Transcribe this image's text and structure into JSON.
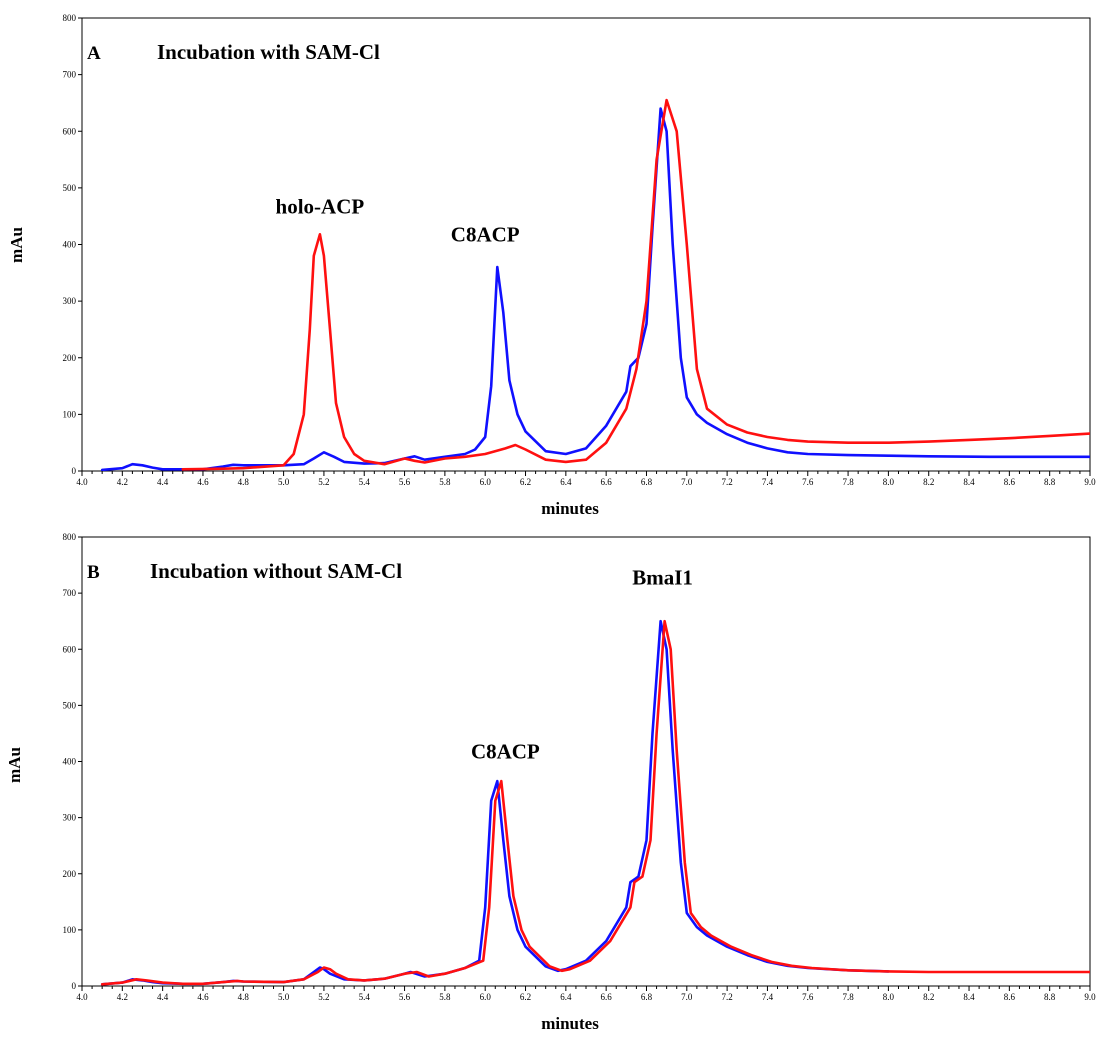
{
  "chart_data": [
    {
      "type": "line",
      "panel_letter": "A",
      "title": "Incubation with SAM-Cl",
      "xlabel": "minutes",
      "ylabel": "mAu",
      "xlim": [
        4.0,
        9.0
      ],
      "ylim": [
        0,
        800
      ],
      "xticks": [
        "4.0",
        "4.2",
        "4.4",
        "4.6",
        "4.8",
        "5.0",
        "5.2",
        "5.4",
        "5.6",
        "5.8",
        "6.0",
        "6.2",
        "6.4",
        "6.6",
        "6.8",
        "7.0",
        "7.2",
        "7.4",
        "7.6",
        "7.8",
        "8.0",
        "8.2",
        "8.4",
        "8.6",
        "8.8",
        "9.0"
      ],
      "yticks": [
        "0",
        "100",
        "200",
        "300",
        "400",
        "500",
        "600",
        "700",
        "800"
      ],
      "grid": false,
      "annotations": [
        {
          "text": "holo-ACP",
          "x": 5.18,
          "y": 455
        },
        {
          "text": "C8ACP",
          "x": 6.0,
          "y": 405
        }
      ],
      "series": [
        {
          "color": "#1010ff",
          "x": [
            4.1,
            4.2,
            4.25,
            4.3,
            4.35,
            4.4,
            4.5,
            4.6,
            4.7,
            4.75,
            4.8,
            5.0,
            5.1,
            5.15,
            5.2,
            5.25,
            5.3,
            5.4,
            5.5,
            5.6,
            5.65,
            5.7,
            5.8,
            5.9,
            5.95,
            6.0,
            6.03,
            6.06,
            6.09,
            6.12,
            6.16,
            6.2,
            6.3,
            6.4,
            6.5,
            6.6,
            6.7,
            6.72,
            6.76,
            6.8,
            6.83,
            6.87,
            6.9,
            6.93,
            6.97,
            7.0,
            7.05,
            7.1,
            7.2,
            7.3,
            7.4,
            7.5,
            7.6,
            7.8,
            8.0,
            8.2,
            8.5,
            8.8,
            9.0
          ],
          "values": [
            2,
            5,
            12,
            10,
            6,
            3,
            3,
            3,
            8,
            11,
            10,
            10,
            12,
            22,
            33,
            25,
            16,
            13,
            14,
            22,
            26,
            20,
            25,
            30,
            38,
            60,
            150,
            360,
            280,
            160,
            100,
            70,
            35,
            30,
            40,
            80,
            140,
            185,
            200,
            260,
            430,
            640,
            600,
            400,
            200,
            130,
            100,
            85,
            65,
            50,
            40,
            33,
            30,
            28,
            27,
            26,
            25,
            25,
            25
          ]
        },
        {
          "color": "#ff1010",
          "x": [
            4.5,
            4.7,
            4.8,
            5.0,
            5.05,
            5.1,
            5.13,
            5.15,
            5.18,
            5.2,
            5.23,
            5.26,
            5.3,
            5.35,
            5.4,
            5.5,
            5.6,
            5.65,
            5.7,
            5.8,
            5.9,
            6.0,
            6.1,
            6.15,
            6.2,
            6.3,
            6.4,
            6.5,
            6.6,
            6.7,
            6.75,
            6.8,
            6.85,
            6.9,
            6.95,
            7.0,
            7.05,
            7.1,
            7.2,
            7.3,
            7.4,
            7.5,
            7.6,
            7.8,
            8.0,
            8.2,
            8.4,
            8.6,
            8.8,
            9.0
          ],
          "values": [
            3,
            4,
            5,
            10,
            30,
            100,
            250,
            380,
            418,
            380,
            250,
            120,
            60,
            30,
            18,
            12,
            22,
            18,
            15,
            22,
            25,
            30,
            40,
            46,
            38,
            20,
            16,
            20,
            50,
            110,
            180,
            300,
            550,
            655,
            600,
            400,
            180,
            110,
            82,
            68,
            60,
            55,
            52,
            50,
            50,
            52,
            55,
            58,
            62,
            66
          ]
        }
      ]
    },
    {
      "type": "line",
      "panel_letter": "B",
      "title": "Incubation without SAM-Cl",
      "xlabel": "minutes",
      "ylabel": "mAu",
      "xlim": [
        4.0,
        9.0
      ],
      "ylim": [
        0,
        800
      ],
      "xticks": [
        "4.0",
        "4.2",
        "4.4",
        "4.6",
        "4.8",
        "5.0",
        "5.2",
        "5.4",
        "5.6",
        "5.8",
        "6.0",
        "6.2",
        "6.4",
        "6.6",
        "6.8",
        "7.0",
        "7.2",
        "7.4",
        "7.6",
        "7.8",
        "8.0",
        "8.2",
        "8.4",
        "8.6",
        "8.8",
        "9.0"
      ],
      "yticks": [
        "0",
        "100",
        "200",
        "300",
        "400",
        "500",
        "600",
        "700",
        "800"
      ],
      "grid": false,
      "annotations": [
        {
          "text": "C8ACP",
          "x": 6.1,
          "y": 405
        },
        {
          "text": "BmaI1",
          "x": 6.88,
          "y": 715
        }
      ],
      "series": [
        {
          "color": "#1010ff",
          "x": [
            4.1,
            4.2,
            4.25,
            4.3,
            4.35,
            4.4,
            4.5,
            4.6,
            4.7,
            4.75,
            4.8,
            5.0,
            5.1,
            5.15,
            5.18,
            5.2,
            5.23,
            5.3,
            5.4,
            5.5,
            5.6,
            5.63,
            5.7,
            5.8,
            5.9,
            5.97,
            6.0,
            6.03,
            6.06,
            6.09,
            6.12,
            6.16,
            6.2,
            6.3,
            6.36,
            6.4,
            6.5,
            6.6,
            6.7,
            6.72,
            6.76,
            6.8,
            6.83,
            6.87,
            6.9,
            6.93,
            6.97,
            7.0,
            7.05,
            7.1,
            7.2,
            7.3,
            7.4,
            7.5,
            7.6,
            7.8,
            8.0
          ],
          "values": [
            3,
            6,
            12,
            10,
            7,
            5,
            4,
            4,
            7,
            9,
            8,
            7,
            12,
            25,
            33,
            30,
            22,
            12,
            10,
            13,
            22,
            25,
            17,
            22,
            32,
            45,
            140,
            330,
            365,
            260,
            160,
            100,
            70,
            35,
            27,
            30,
            45,
            80,
            140,
            185,
            195,
            260,
            450,
            650,
            600,
            420,
            220,
            130,
            105,
            90,
            70,
            55,
            43,
            36,
            32,
            28,
            26
          ]
        },
        {
          "color": "#ff1010",
          "x": [
            4.1,
            4.2,
            4.27,
            4.32,
            4.4,
            4.5,
            4.6,
            4.7,
            4.77,
            4.8,
            5.0,
            5.1,
            5.17,
            5.2,
            5.23,
            5.26,
            5.32,
            5.4,
            5.5,
            5.6,
            5.66,
            5.72,
            5.8,
            5.9,
            5.99,
            6.02,
            6.05,
            6.08,
            6.11,
            6.14,
            6.18,
            6.22,
            6.32,
            6.38,
            6.42,
            6.52,
            6.62,
            6.72,
            6.74,
            6.78,
            6.82,
            6.85,
            6.89,
            6.92,
            6.95,
            6.99,
            7.02,
            7.07,
            7.12,
            7.22,
            7.32,
            7.42,
            7.52,
            7.62,
            7.8,
            8.0,
            8.2,
            8.5,
            8.8,
            9.0
          ],
          "values": [
            3,
            6,
            12,
            10,
            6,
            4,
            4,
            7,
            9,
            8,
            7,
            12,
            25,
            33,
            30,
            22,
            12,
            10,
            13,
            22,
            25,
            17,
            22,
            32,
            45,
            140,
            330,
            365,
            260,
            160,
            100,
            70,
            35,
            27,
            30,
            45,
            80,
            140,
            185,
            195,
            260,
            450,
            650,
            600,
            420,
            220,
            130,
            105,
            90,
            70,
            55,
            43,
            36,
            32,
            28,
            26,
            25,
            25,
            25,
            25
          ]
        }
      ]
    }
  ]
}
